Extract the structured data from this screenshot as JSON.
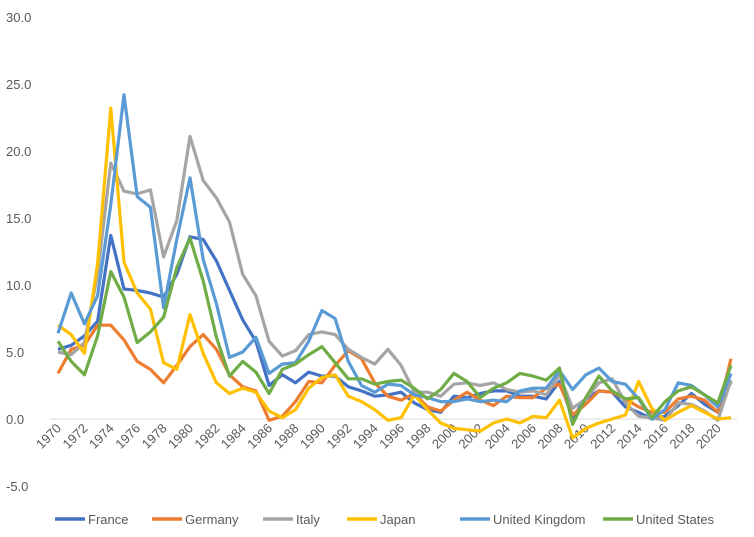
{
  "chart_data": {
    "type": "line",
    "title": "",
    "xlabel": "",
    "ylabel": "",
    "ylim": [
      -5,
      30
    ],
    "yticks": [
      "30.0",
      "25.0",
      "20.0",
      "15.0",
      "10.0",
      "5.0",
      "0.0",
      "-5.0"
    ],
    "ytick_values": [
      30,
      25,
      20,
      15,
      10,
      5,
      0,
      -5
    ],
    "xtick_labels": [
      "1970",
      "1972",
      "1974",
      "1976",
      "1978",
      "1980",
      "1982",
      "1984",
      "1986",
      "1988",
      "1990",
      "1992",
      "1994",
      "1996",
      "1998",
      "2000",
      "2002",
      "2004",
      "2006",
      "2008",
      "2010",
      "2012",
      "2014",
      "2016",
      "2018",
      "2020"
    ],
    "x_start": 1970,
    "x_end": 2021,
    "grid": "zero line only",
    "legend": "bottom",
    "series": [
      {
        "name": "France",
        "color": "#4472C4",
        "values": [
          5.2,
          5.5,
          6.2,
          7.3,
          13.7,
          9.7,
          9.6,
          9.4,
          9.1,
          10.8,
          13.6,
          13.4,
          11.8,
          9.6,
          7.4,
          5.8,
          2.5,
          3.3,
          2.7,
          3.5,
          3.2,
          3.2,
          2.4,
          2.1,
          1.7,
          1.8,
          2.0,
          1.2,
          0.7,
          0.5,
          1.7,
          1.6,
          1.9,
          2.1,
          2.1,
          1.7,
          1.7,
          1.5,
          2.8,
          0.1,
          1.5,
          2.1,
          2.0,
          0.9,
          0.5,
          0.0,
          0.2,
          1.0,
          1.9,
          1.1,
          0.5,
          2.8
        ]
      },
      {
        "name": "Germany",
        "color": "#ED7D31",
        "values": [
          3.4,
          5.2,
          5.5,
          7.0,
          7.0,
          5.9,
          4.3,
          3.7,
          2.7,
          4.0,
          5.4,
          6.3,
          5.2,
          3.3,
          2.4,
          2.1,
          -0.1,
          0.2,
          1.3,
          2.8,
          2.7,
          4.0,
          5.1,
          4.5,
          2.7,
          1.7,
          1.4,
          1.9,
          0.9,
          0.6,
          1.4,
          2.0,
          1.4,
          1.0,
          1.7,
          1.6,
          1.6,
          2.3,
          2.6,
          0.3,
          1.1,
          2.1,
          2.0,
          1.5,
          0.9,
          0.5,
          0.5,
          1.5,
          1.7,
          1.4,
          0.5,
          4.5
        ]
      },
      {
        "name": "Italy",
        "color": "#A5A5A5",
        "values": [
          5.0,
          4.8,
          5.7,
          10.8,
          19.1,
          17.0,
          16.8,
          17.1,
          12.1,
          14.8,
          21.1,
          17.8,
          16.5,
          14.7,
          10.8,
          9.2,
          5.8,
          4.7,
          5.1,
          6.3,
          6.5,
          6.3,
          5.2,
          4.6,
          4.1,
          5.2,
          4.0,
          2.0,
          2.0,
          1.7,
          2.6,
          2.7,
          2.5,
          2.7,
          2.2,
          2.0,
          2.1,
          1.8,
          3.3,
          0.8,
          1.5,
          2.7,
          3.0,
          1.2,
          0.2,
          0.1,
          -0.1,
          1.2,
          1.1,
          0.6,
          -0.1,
          2.9
        ]
      },
      {
        "name": "Japan",
        "color": "#FFC000",
        "values": [
          7.0,
          6.3,
          4.9,
          11.6,
          23.2,
          11.7,
          9.4,
          8.2,
          4.2,
          3.7,
          7.8,
          4.9,
          2.7,
          1.9,
          2.3,
          2.0,
          0.6,
          0.1,
          0.7,
          2.3,
          3.1,
          3.3,
          1.7,
          1.3,
          0.7,
          -0.1,
          0.1,
          1.8,
          0.7,
          -0.3,
          -0.7,
          -0.8,
          -0.9,
          -0.3,
          0.0,
          -0.3,
          0.2,
          0.1,
          1.4,
          -1.4,
          -0.7,
          -0.3,
          0.0,
          0.3,
          2.8,
          0.8,
          -0.1,
          0.5,
          1.0,
          0.5,
          0.0,
          0.1
        ]
      },
      {
        "name": "United Kingdom",
        "color": "#5B9BD5",
        "values": [
          6.4,
          9.4,
          7.1,
          9.2,
          16.0,
          24.2,
          16.6,
          15.8,
          8.3,
          13.4,
          18.0,
          11.9,
          8.6,
          4.6,
          5.0,
          6.1,
          3.4,
          4.1,
          4.2,
          5.8,
          8.1,
          7.5,
          4.3,
          2.5,
          2.0,
          2.6,
          2.5,
          1.8,
          1.6,
          1.3,
          1.3,
          1.5,
          1.3,
          1.4,
          1.3,
          2.1,
          2.3,
          2.3,
          3.6,
          2.2,
          3.3,
          3.8,
          2.8,
          2.6,
          1.5,
          0.0,
          0.7,
          2.7,
          2.5,
          1.8,
          0.9,
          3.4
        ]
      },
      {
        "name": "United States",
        "color": "#70AD47",
        "values": [
          5.8,
          4.3,
          3.3,
          6.2,
          11.0,
          9.1,
          5.7,
          6.5,
          7.6,
          11.3,
          13.5,
          10.3,
          6.1,
          3.2,
          4.3,
          3.5,
          1.9,
          3.7,
          4.1,
          4.8,
          5.4,
          4.2,
          3.0,
          3.0,
          2.6,
          2.8,
          2.9,
          2.3,
          1.5,
          2.2,
          3.4,
          2.8,
          1.6,
          2.3,
          2.7,
          3.4,
          3.2,
          2.9,
          3.8,
          -0.4,
          1.6,
          3.2,
          2.1,
          1.5,
          1.6,
          0.1,
          1.3,
          2.1,
          2.4,
          1.8,
          1.2,
          4.0
        ]
      }
    ]
  }
}
